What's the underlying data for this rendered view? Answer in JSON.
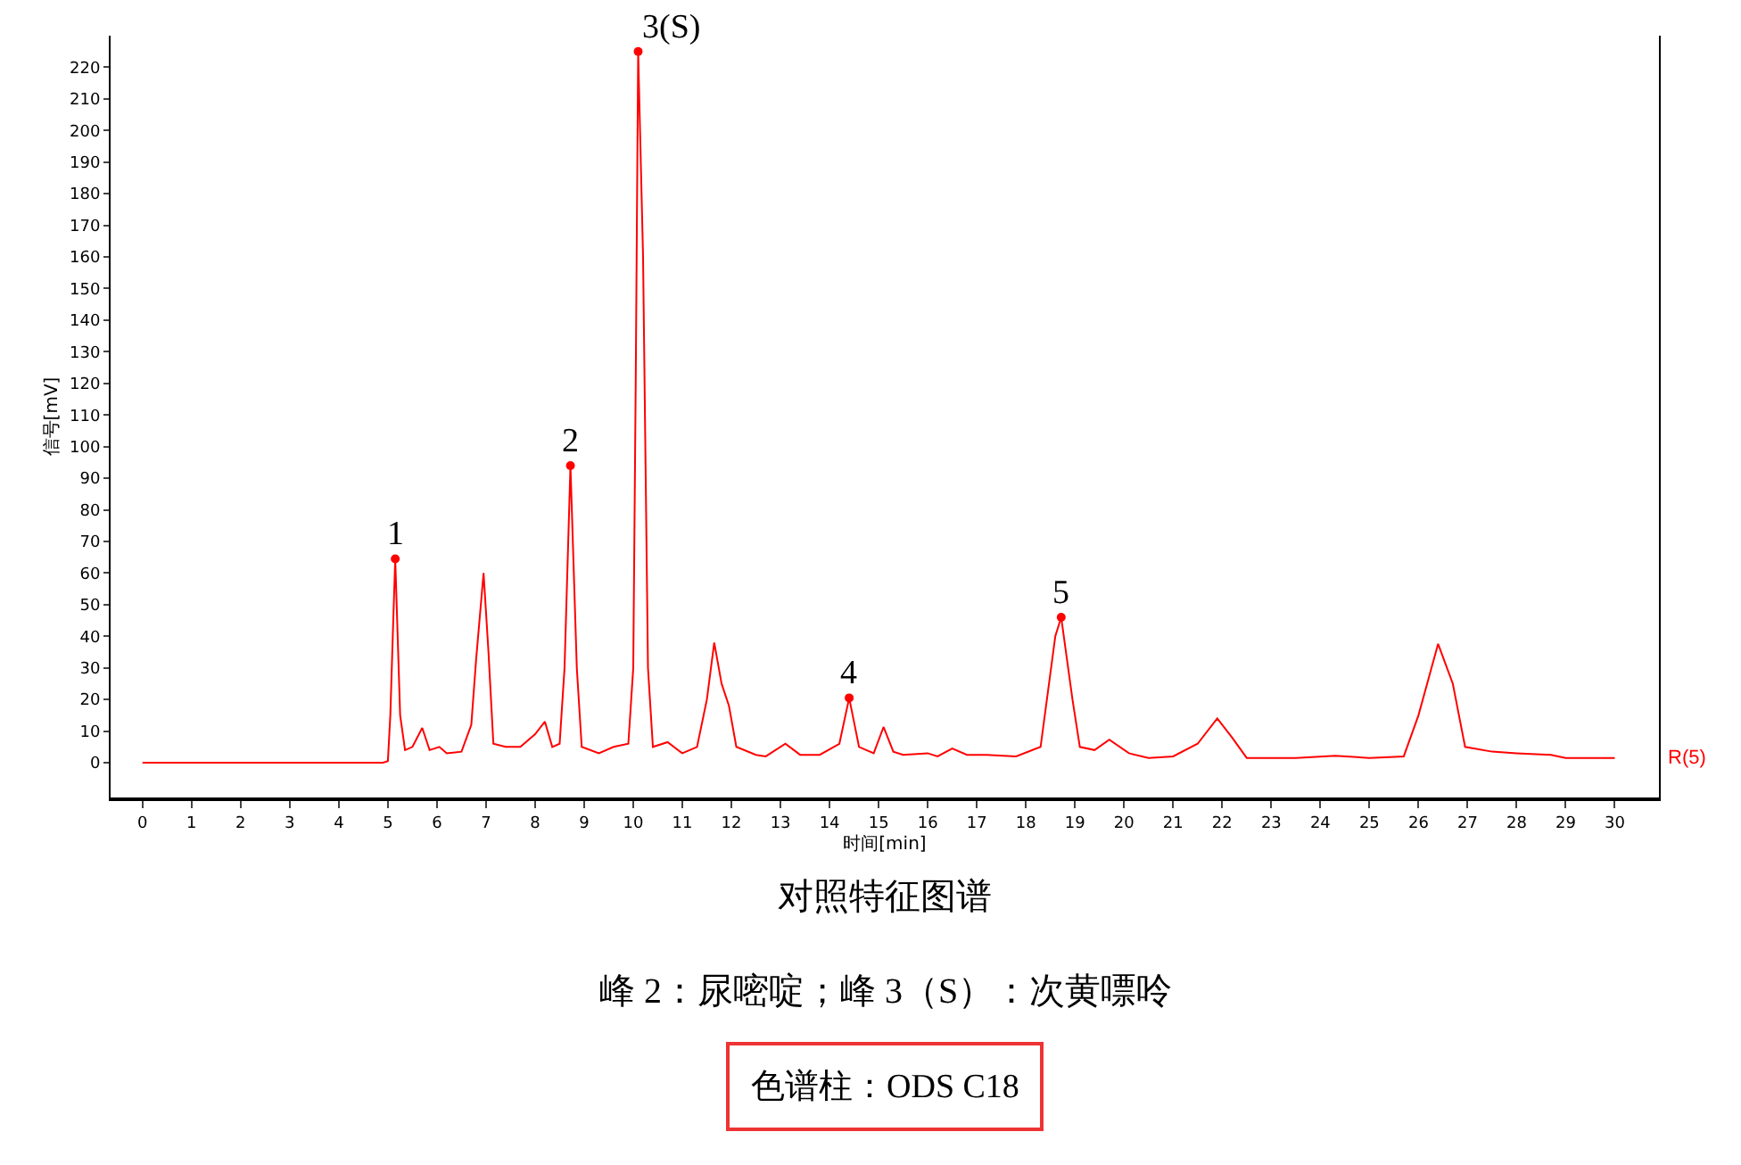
{
  "chart_data": {
    "type": "line",
    "title": "对照特征图谱",
    "subtitle": "峰 2：尿嘧啶；峰 3（S）：次黄嘌呤",
    "xlabel": "时间[min]",
    "ylabel": "信号[mV]",
    "annotations": [
      {
        "text": "1",
        "x": 5.15,
        "y": 64.5
      },
      {
        "text": "2",
        "x": 8.72,
        "y": 94
      },
      {
        "text": "3(S)",
        "x": 10.1,
        "y": 225
      },
      {
        "text": "4",
        "x": 14.4,
        "y": 20.5
      },
      {
        "text": "5",
        "x": 18.72,
        "y": 46
      },
      "色谱柱：ODS C18"
    ],
    "series": [
      {
        "name": "R(5)",
        "color": "#ff0000",
        "x": [
          0,
          4.9,
          5.0,
          5.05,
          5.1,
          5.15,
          5.25,
          5.35,
          5.5,
          5.7,
          5.85,
          6.05,
          6.2,
          6.5,
          6.7,
          6.8,
          6.95,
          7.05,
          7.15,
          7.4,
          7.7,
          8.0,
          8.2,
          8.35,
          8.5,
          8.6,
          8.72,
          8.85,
          8.95,
          9.3,
          9.6,
          9.9,
          10.0,
          10.05,
          10.1,
          10.2,
          10.3,
          10.4,
          10.7,
          11.0,
          11.3,
          11.5,
          11.65,
          11.8,
          11.95,
          12.1,
          12.5,
          12.7,
          13.1,
          13.4,
          13.8,
          14.2,
          14.4,
          14.6,
          14.9,
          15.1,
          15.3,
          15.5,
          16.0,
          16.2,
          16.5,
          16.8,
          17.2,
          17.8,
          18.3,
          18.6,
          18.72,
          18.95,
          19.1,
          19.4,
          19.7,
          20.1,
          20.5,
          21.0,
          21.5,
          21.9,
          22.2,
          22.5,
          23.5,
          24.3,
          25.0,
          25.7,
          26.0,
          26.4,
          26.7,
          26.95,
          27.5,
          28.0,
          28.7,
          29.0,
          30.0
        ],
        "values": [
          0,
          0,
          0.5,
          15,
          40,
          64.5,
          15,
          4,
          5,
          11,
          4,
          5,
          3,
          3.5,
          12,
          33,
          60,
          35,
          6,
          5,
          5,
          9,
          13,
          5,
          6,
          30,
          94,
          30,
          5,
          3,
          5,
          6,
          30,
          120,
          225,
          160,
          30,
          5,
          6.5,
          3,
          5,
          20,
          38,
          25,
          18,
          5,
          2.5,
          2,
          6,
          2.5,
          2.5,
          6,
          20.5,
          5,
          3,
          11.3,
          3.5,
          2.5,
          3,
          2,
          4.5,
          2.5,
          2.5,
          2,
          5,
          40,
          46,
          20,
          5,
          4,
          7.3,
          3,
          1.5,
          2,
          6,
          14,
          8,
          1.5,
          1.5,
          2.2,
          1.5,
          2,
          15,
          37.6,
          25,
          5,
          3.5,
          3,
          2.5,
          1.5,
          1.5
        ]
      }
    ],
    "xlim": [
      -0.65,
      30.9
    ],
    "ylim": [
      -11,
      230
    ],
    "xticks": [
      0,
      1,
      2,
      3,
      4,
      5,
      6,
      7,
      8,
      9,
      10,
      11,
      12,
      13,
      14,
      15,
      16,
      17,
      18,
      19,
      20,
      21,
      22,
      23,
      24,
      25,
      26,
      27,
      28,
      29,
      30
    ],
    "yticks": [
      0,
      10,
      20,
      30,
      40,
      50,
      60,
      70,
      80,
      90,
      100,
      110,
      120,
      130,
      140,
      150,
      160,
      170,
      180,
      190,
      200,
      210,
      220
    ],
    "legend": false,
    "marker": "none",
    "line_style": "solid"
  }
}
